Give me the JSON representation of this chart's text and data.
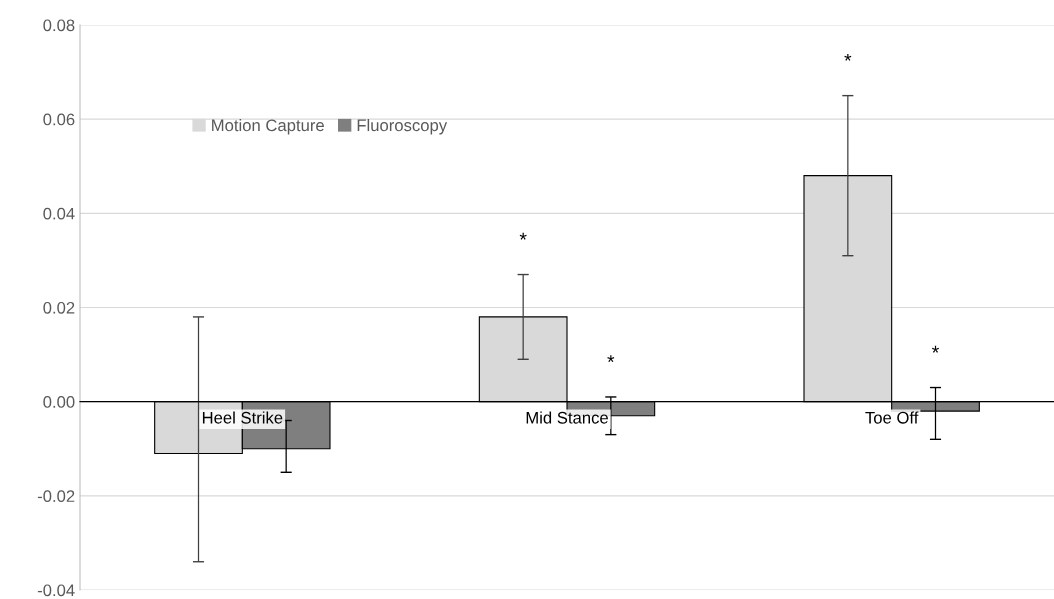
{
  "chart_data": {
    "type": "bar",
    "categories": [
      "Heel Strike",
      "Mid Stance",
      "Toe Off"
    ],
    "series": [
      {
        "name": "Motion Capture",
        "color": "#d9d9d9",
        "values": [
          -0.011,
          0.018,
          0.048
        ],
        "errors": [
          [
            -0.034,
            0.018
          ],
          [
            0.009,
            0.027
          ],
          [
            0.031,
            0.065
          ]
        ]
      },
      {
        "name": "Fluoroscopy",
        "color": "#7f7f7f",
        "values": [
          -0.01,
          -0.003,
          -0.002
        ],
        "errors": [
          [
            -0.015,
            -0.004
          ],
          [
            -0.007,
            0.001
          ],
          [
            -0.008,
            0.003
          ]
        ]
      }
    ],
    "ylim": [
      -0.04,
      0.08
    ],
    "yticks": [
      {
        "value": -0.04,
        "label": "-0.04"
      },
      {
        "value": -0.02,
        "label": "-0.02"
      },
      {
        "value": 0,
        "label": "0.00"
      },
      {
        "value": 0.02,
        "label": "0.02"
      },
      {
        "value": 0.04,
        "label": "0.04"
      },
      {
        "value": 0.06,
        "label": "0.06"
      },
      {
        "value": 0.08,
        "label": "0.08"
      }
    ],
    "annotations": [
      "*",
      "*",
      "*",
      "*"
    ],
    "grid": "y",
    "legend": "top left"
  }
}
